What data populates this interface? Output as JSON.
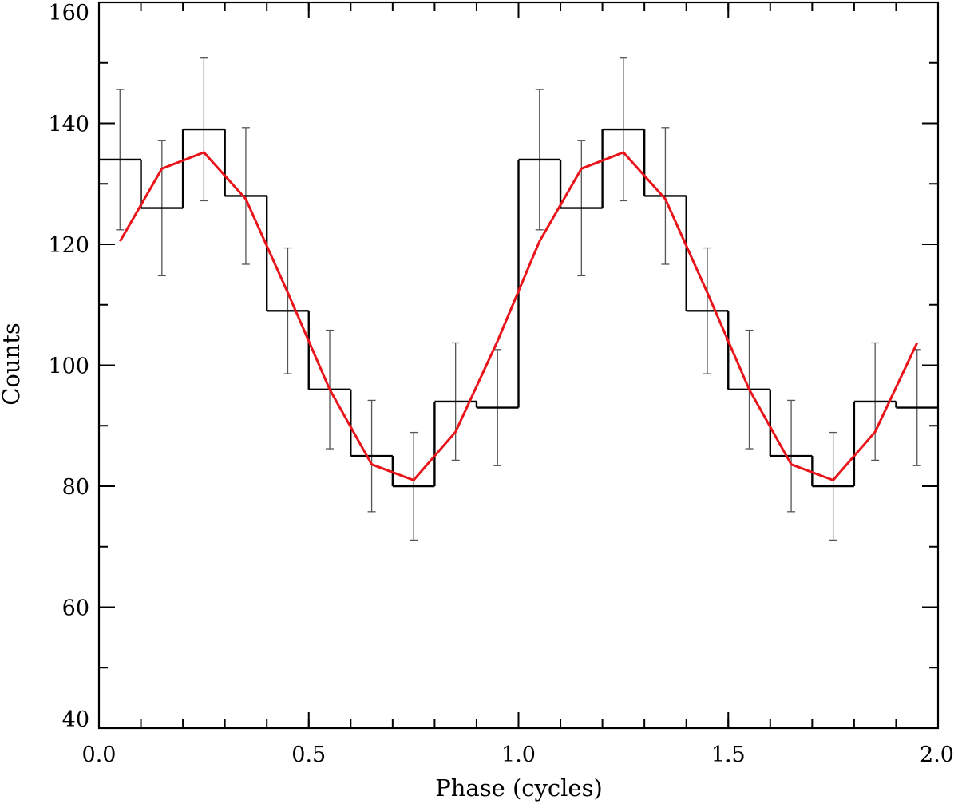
{
  "chart_data": {
    "type": "line",
    "xlabel": "Phase (cycles)",
    "ylabel": "Counts",
    "xlim": [
      0.0,
      2.0
    ],
    "ylim": [
      40,
      160
    ],
    "grid": false,
    "x_ticks": [
      {
        "value": 0.0,
        "label": "0.0"
      },
      {
        "value": 0.5,
        "label": "0.5"
      },
      {
        "value": 1.0,
        "label": "1.0"
      },
      {
        "value": 1.5,
        "label": "1.5"
      },
      {
        "value": 2.0,
        "label": "2.0"
      }
    ],
    "x_minor_step": 0.1,
    "y_ticks": [
      {
        "value": 40,
        "label": "40"
      },
      {
        "value": 60,
        "label": "60"
      },
      {
        "value": 80,
        "label": "80"
      },
      {
        "value": 100,
        "label": "100"
      },
      {
        "value": 120,
        "label": "120"
      },
      {
        "value": 140,
        "label": "140"
      },
      {
        "value": 160,
        "label": "160"
      }
    ],
    "y_minor_step": 10,
    "series": [
      {
        "kind": "histogram-step",
        "color": "#000000",
        "bin_width": 0.1,
        "x": [
          0.05,
          0.15,
          0.25,
          0.35,
          0.45,
          0.55,
          0.65,
          0.75,
          0.85,
          0.95,
          1.05,
          1.15,
          1.25,
          1.35,
          1.45,
          1.55,
          1.65,
          1.75,
          1.85,
          1.95
        ],
        "values": [
          134,
          126,
          139,
          128,
          109,
          96,
          85,
          80,
          94,
          93,
          134,
          126,
          139,
          128,
          109,
          96,
          85,
          80,
          94,
          93
        ]
      },
      {
        "kind": "error-bars",
        "color": "#555555",
        "x": [
          0.05,
          0.15,
          0.25,
          0.35,
          0.45,
          0.55,
          0.65,
          0.75,
          0.85,
          0.95,
          1.05,
          1.15,
          1.25,
          1.35,
          1.45,
          1.55,
          1.65,
          1.75,
          1.85,
          1.95
        ],
        "center": [
          134,
          126,
          139,
          128,
          109,
          96,
          85,
          80,
          94,
          93,
          134,
          126,
          139,
          128,
          109,
          96,
          85,
          80,
          94,
          93
        ],
        "error": [
          11.6,
          11.2,
          11.8,
          11.3,
          10.4,
          9.8,
          9.2,
          8.9,
          9.7,
          9.6,
          11.6,
          11.2,
          11.8,
          11.3,
          10.4,
          9.8,
          9.2,
          8.9,
          9.7,
          9.6
        ]
      },
      {
        "kind": "line",
        "color": "#e8141a",
        "x": [
          0.05,
          0.15,
          0.25,
          0.35,
          0.45,
          0.55,
          0.65,
          0.75,
          0.85,
          0.95,
          1.05,
          1.15,
          1.25,
          1.35,
          1.45,
          1.55,
          1.65,
          1.75,
          1.85,
          1.95
        ],
        "values": [
          120.5,
          132.5,
          135.2,
          127.5,
          112,
          96,
          83.6,
          81,
          89,
          104,
          120.5,
          132.5,
          135.2,
          127.5,
          112,
          96,
          83.6,
          81,
          89,
          103.7
        ]
      }
    ]
  }
}
